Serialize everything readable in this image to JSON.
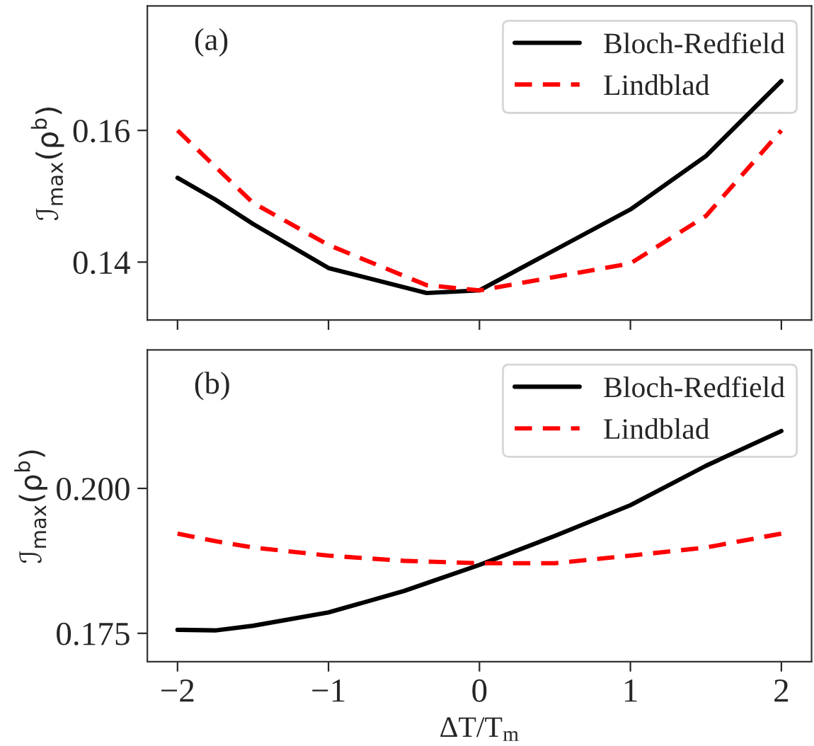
{
  "chart_data": [
    {
      "type": "line",
      "annotations": [
        "(a)"
      ],
      "ylabel": "ℐ$_{max}$(ρ$^{b}$)",
      "x": [
        -2,
        -1.75,
        -1.5,
        -1,
        -0.35,
        0,
        1,
        1.5,
        2
      ],
      "series": [
        {
          "name": "Bloch-Redfield",
          "color": "#000000",
          "line_style": "solid",
          "values": [
            0.1528,
            0.1495,
            0.1458,
            0.1391,
            0.1353,
            0.1357,
            0.148,
            0.1561,
            0.1675
          ]
        },
        {
          "name": "Lindblad",
          "color": "#ff0000",
          "line_style": "dashed",
          "values": [
            0.16,
            0.1545,
            0.149,
            0.1426,
            0.1365,
            0.1357,
            0.1398,
            0.147,
            0.16
          ]
        }
      ],
      "xlim": [
        -2.2,
        2.2
      ],
      "xticks": [
        {
          "value": -2,
          "label": null
        },
        {
          "value": -1,
          "label": null
        },
        {
          "value": 0,
          "label": null
        },
        {
          "value": 1,
          "label": null
        },
        {
          "value": 2,
          "label": null
        }
      ],
      "ylim": [
        0.1312,
        0.1789
      ],
      "yticks": [
        0.14,
        0.16
      ],
      "tick_labels": "y",
      "legend": "top right",
      "grid": false
    },
    {
      "type": "line",
      "annotations": [
        "(b)"
      ],
      "ylabel": "ℐ$_{max}$(ρ$^{b}$)",
      "xlabel": "ΔT/T$_{m}$",
      "x": [
        -2,
        -1.75,
        -1.5,
        -1,
        -0.5,
        0,
        0.5,
        1,
        1.5,
        2
      ],
      "series": [
        {
          "name": "Bloch-Redfield",
          "color": "#000000",
          "line_style": "solid",
          "values": [
            0.1756,
            0.1755,
            0.1763,
            0.1786,
            0.1823,
            0.1868,
            0.1918,
            0.1971,
            0.2039,
            0.2099
          ]
        },
        {
          "name": "Lindblad",
          "color": "#ff0000",
          "line_style": "dashed",
          "values": [
            0.1922,
            0.1909,
            0.1898,
            0.1884,
            0.1875,
            0.1871,
            0.1871,
            0.1884,
            0.1898,
            0.1922
          ]
        }
      ],
      "xlim": [
        -2.2,
        2.2
      ],
      "xticks": [
        {
          "value": -2,
          "label": "−2"
        },
        {
          "value": -1,
          "label": "−1"
        },
        0,
        1,
        2
      ],
      "ylim": [
        0.1701,
        0.2239
      ],
      "yticks": [
        {
          "value": 0.175,
          "label": "0.175"
        },
        {
          "value": 0.2,
          "label": "0.200"
        }
      ],
      "legend": "top right",
      "grid": false
    }
  ]
}
